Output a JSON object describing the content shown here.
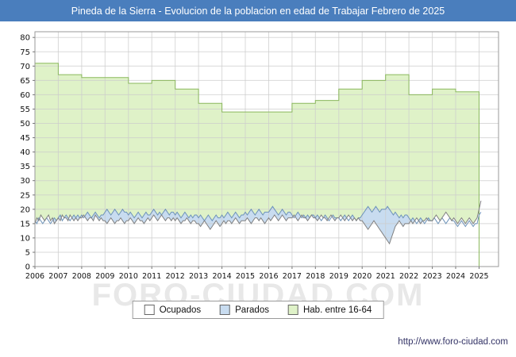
{
  "window": {
    "title": "Pineda de la Sierra - Evolucion de la poblacion en edad de Trabajar Febrero de 2025"
  },
  "watermark": "FORO-CIUDAD.COM",
  "footer": {
    "url": "http://www.foro-ciudad.com"
  },
  "colors": {
    "titlebar_bg": "#4a7ebd",
    "titlebar_fg": "#ffffff",
    "grid": "#cccccc",
    "plot_border": "#9a9a9a",
    "axis_text": "#111111",
    "watermark": "#e8e8e8",
    "footer_fg": "#333366"
  },
  "legend": [
    {
      "label": "Ocupados",
      "fill": "#ffffff",
      "stroke": "#808080"
    },
    {
      "label": "Parados",
      "fill": "#c8dcf0",
      "stroke": "#6c92b8"
    },
    {
      "label": "Hab. entre 16-64",
      "fill": "#dff2c8",
      "stroke": "#8ab85c"
    }
  ],
  "chart_data": {
    "type": "area",
    "title": "Pineda de la Sierra - Evolucion de la poblacion en edad de Trabajar Febrero de 2025",
    "x_start": "2006-01",
    "x_end": "2025-02",
    "x_tick_labels": [
      "2006",
      "2007",
      "2008",
      "2009",
      "2010",
      "2011",
      "2012",
      "2013",
      "2014",
      "2015",
      "2016",
      "2017",
      "2018",
      "2019",
      "2020",
      "2021",
      "2022",
      "2023",
      "2024",
      "2025"
    ],
    "ylim": [
      0,
      80
    ],
    "y_tick_step": 5,
    "grid": true,
    "legend_position": "bottom",
    "series": [
      {
        "name": "Hab. entre 16-64",
        "resolution": "annual",
        "years": [
          2006,
          2007,
          2008,
          2009,
          2010,
          2011,
          2012,
          2013,
          2014,
          2015,
          2016,
          2017,
          2018,
          2019,
          2020,
          2021,
          2022,
          2023,
          2024
        ],
        "values": [
          71,
          67,
          66,
          66,
          64,
          65,
          62,
          57,
          54,
          54,
          54,
          57,
          58,
          62,
          65,
          67,
          60,
          62,
          61
        ],
        "fill": "#dff2c8",
        "stroke": "#8ab85c"
      },
      {
        "name": "Parados",
        "resolution": "monthly",
        "values": [
          16,
          15,
          17,
          16,
          15,
          16,
          17,
          16,
          15,
          16,
          17,
          16,
          17,
          18,
          16,
          17,
          18,
          17,
          16,
          17,
          18,
          17,
          18,
          17,
          18,
          17,
          18,
          19,
          18,
          17,
          18,
          19,
          18,
          17,
          18,
          18,
          19,
          20,
          19,
          18,
          19,
          20,
          19,
          18,
          19,
          20,
          19,
          19,
          18,
          19,
          18,
          17,
          18,
          19,
          18,
          17,
          18,
          19,
          18,
          18,
          19,
          20,
          19,
          18,
          19,
          18,
          19,
          20,
          19,
          18,
          19,
          19,
          18,
          19,
          18,
          17,
          18,
          19,
          18,
          17,
          18,
          17,
          18,
          18,
          17,
          18,
          17,
          16,
          17,
          18,
          17,
          16,
          17,
          18,
          17,
          17,
          18,
          17,
          18,
          19,
          18,
          17,
          18,
          19,
          18,
          17,
          18,
          18,
          19,
          18,
          19,
          20,
          19,
          18,
          19,
          20,
          19,
          18,
          19,
          19,
          19,
          20,
          21,
          20,
          19,
          18,
          19,
          20,
          19,
          18,
          19,
          19,
          18,
          17,
          18,
          19,
          18,
          17,
          18,
          17,
          18,
          17,
          18,
          18,
          17,
          18,
          17,
          16,
          17,
          18,
          17,
          16,
          17,
          18,
          17,
          17,
          17,
          16,
          17,
          18,
          17,
          16,
          17,
          18,
          17,
          16,
          17,
          17,
          18,
          19,
          20,
          21,
          20,
          19,
          20,
          21,
          20,
          19,
          20,
          20,
          20,
          21,
          20,
          19,
          18,
          19,
          18,
          17,
          18,
          17,
          18,
          18,
          17,
          16,
          17,
          16,
          15,
          16,
          17,
          16,
          15,
          16,
          17,
          16,
          16,
          17,
          16,
          15,
          16,
          17,
          16,
          15,
          16,
          17,
          16,
          16,
          15,
          14,
          15,
          16,
          15,
          14,
          15,
          16,
          15,
          14,
          15,
          15,
          18,
          19
        ],
        "fill": "#c8dcf0",
        "stroke": "#6c92b8"
      },
      {
        "name": "Ocupados",
        "resolution": "monthly",
        "values": [
          15,
          17,
          16,
          18,
          17,
          16,
          17,
          18,
          16,
          17,
          15,
          16,
          17,
          16,
          18,
          17,
          17,
          16,
          18,
          17,
          16,
          17,
          16,
          17,
          17,
          18,
          17,
          16,
          17,
          17,
          16,
          18,
          17,
          16,
          17,
          16,
          16,
          15,
          16,
          17,
          16,
          15,
          16,
          16,
          17,
          16,
          15,
          16,
          16,
          17,
          16,
          15,
          16,
          17,
          16,
          16,
          15,
          16,
          17,
          16,
          17,
          18,
          17,
          16,
          17,
          18,
          17,
          16,
          17,
          17,
          16,
          17,
          16,
          17,
          16,
          15,
          16,
          16,
          17,
          16,
          15,
          16,
          16,
          15,
          15,
          14,
          15,
          16,
          15,
          14,
          13,
          14,
          15,
          16,
          15,
          14,
          15,
          16,
          15,
          16,
          16,
          15,
          16,
          17,
          16,
          15,
          16,
          16,
          16,
          17,
          16,
          15,
          16,
          17,
          17,
          16,
          17,
          16,
          15,
          16,
          17,
          16,
          17,
          18,
          17,
          16,
          17,
          18,
          17,
          16,
          17,
          17,
          17,
          18,
          17,
          16,
          17,
          18,
          17,
          17,
          16,
          17,
          18,
          17,
          17,
          16,
          17,
          18,
          17,
          17,
          16,
          17,
          18,
          17,
          16,
          17,
          17,
          18,
          17,
          16,
          17,
          18,
          17,
          16,
          17,
          16,
          17,
          16,
          16,
          15,
          14,
          13,
          14,
          15,
          16,
          15,
          14,
          13,
          12,
          11,
          10,
          9,
          8,
          10,
          12,
          14,
          15,
          16,
          15,
          14,
          15,
          15,
          15,
          16,
          15,
          16,
          17,
          16,
          15,
          16,
          16,
          17,
          16,
          16,
          16,
          17,
          18,
          17,
          16,
          17,
          18,
          19,
          18,
          17,
          16,
          17,
          16,
          15,
          16,
          17,
          16,
          15,
          16,
          17,
          16,
          15,
          16,
          17,
          20,
          23
        ],
        "fill": "#ffffff",
        "stroke": "#808080"
      }
    ]
  }
}
